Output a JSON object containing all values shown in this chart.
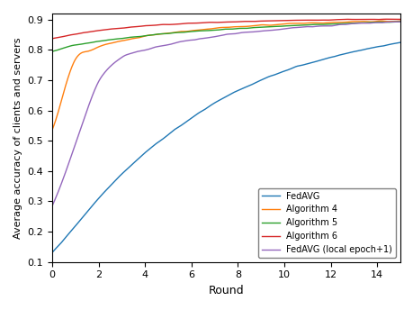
{
  "title": "",
  "xlabel": "Round",
  "ylabel": "Average accuracy of clients and servers",
  "xlim": [
    0,
    15
  ],
  "ylim": [
    0.1,
    0.92
  ],
  "yticks": [
    0.1,
    0.2,
    0.3,
    0.4,
    0.5,
    0.6,
    0.7,
    0.8,
    0.9
  ],
  "xticks": [
    0,
    2,
    4,
    6,
    8,
    10,
    12,
    14
  ],
  "curves": [
    {
      "label": "FedAVG",
      "color": "#1f77b4",
      "points_x": [
        0,
        0.5,
        1,
        1.5,
        2,
        3,
        4,
        5,
        6,
        7,
        8,
        9,
        10,
        11,
        12,
        13,
        14,
        15
      ],
      "points_y": [
        0.13,
        0.175,
        0.22,
        0.265,
        0.31,
        0.39,
        0.46,
        0.52,
        0.575,
        0.625,
        0.665,
        0.7,
        0.73,
        0.755,
        0.775,
        0.795,
        0.81,
        0.825
      ],
      "noise": 0.003,
      "lw": 1.0
    },
    {
      "label": "Algorithm 4",
      "color": "#ff7f0e",
      "points_x": [
        0,
        0.5,
        1,
        1.5,
        2,
        3,
        4,
        5,
        6,
        7,
        8,
        9,
        10,
        11,
        12,
        13,
        14,
        15
      ],
      "points_y": [
        0.535,
        0.66,
        0.77,
        0.795,
        0.81,
        0.83,
        0.845,
        0.855,
        0.863,
        0.87,
        0.876,
        0.881,
        0.885,
        0.888,
        0.89,
        0.892,
        0.894,
        0.895
      ],
      "noise": 0.003,
      "lw": 1.0
    },
    {
      "label": "Algorithm 5",
      "color": "#2ca02c",
      "points_x": [
        0,
        0.5,
        1,
        1.5,
        2,
        3,
        4,
        5,
        6,
        7,
        8,
        9,
        10,
        11,
        12,
        13,
        14,
        15
      ],
      "points_y": [
        0.795,
        0.806,
        0.816,
        0.822,
        0.828,
        0.838,
        0.847,
        0.854,
        0.86,
        0.865,
        0.87,
        0.875,
        0.879,
        0.882,
        0.885,
        0.888,
        0.891,
        0.893
      ],
      "noise": 0.002,
      "lw": 1.0
    },
    {
      "label": "Algorithm 6",
      "color": "#d62728",
      "points_x": [
        0,
        0.5,
        1,
        1.5,
        2,
        3,
        4,
        5,
        6,
        7,
        8,
        9,
        10,
        11,
        12,
        13,
        14,
        15
      ],
      "points_y": [
        0.838,
        0.845,
        0.852,
        0.858,
        0.864,
        0.872,
        0.879,
        0.884,
        0.888,
        0.891,
        0.893,
        0.895,
        0.897,
        0.898,
        0.899,
        0.9,
        0.901,
        0.902
      ],
      "noise": 0.002,
      "lw": 1.0
    },
    {
      "label": "FedAVG (local epoch+1)",
      "color": "#9467bd",
      "points_x": [
        0,
        0.5,
        1,
        1.5,
        2,
        2.5,
        3,
        4,
        5,
        6,
        7,
        8,
        9,
        10,
        11,
        12,
        13,
        14,
        15
      ],
      "points_y": [
        0.285,
        0.38,
        0.49,
        0.6,
        0.695,
        0.745,
        0.775,
        0.8,
        0.818,
        0.832,
        0.844,
        0.854,
        0.862,
        0.87,
        0.876,
        0.881,
        0.886,
        0.89,
        0.893
      ],
      "noise": 0.003,
      "lw": 1.0
    }
  ],
  "legend_loc": "lower right",
  "legend_fontsize": 7,
  "tick_labelsize": 8,
  "xlabel_fontsize": 9,
  "ylabel_fontsize": 8
}
